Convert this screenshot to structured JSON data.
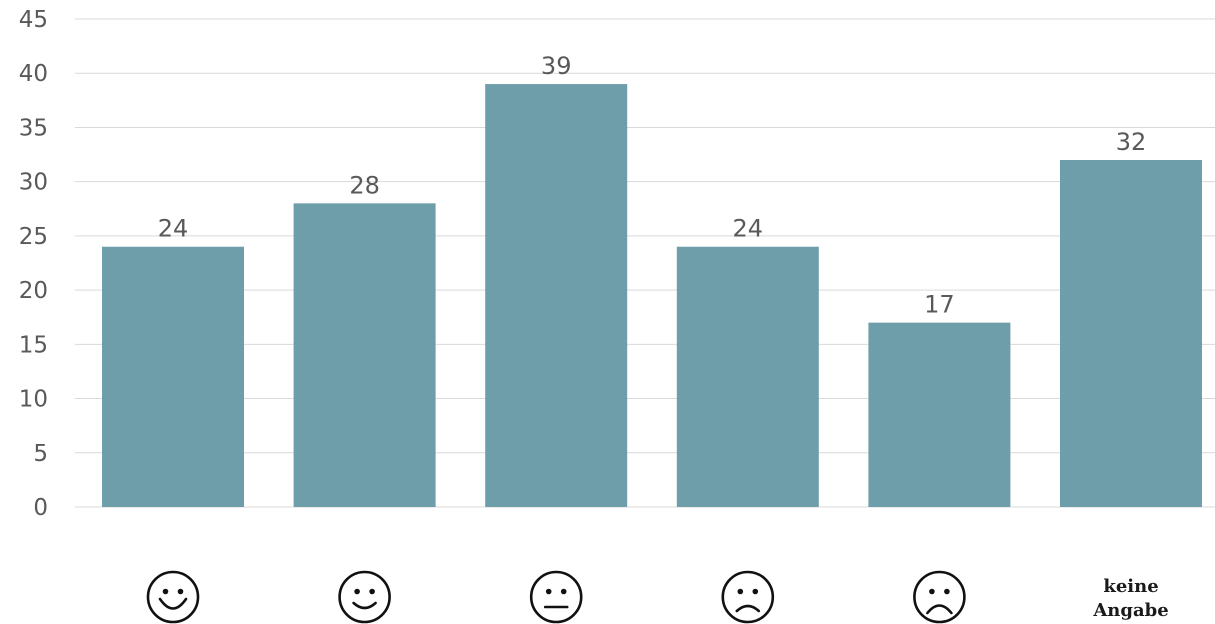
{
  "chart_data": {
    "type": "bar",
    "categories": [
      {
        "label": "",
        "icon": "very-happy-face-icon"
      },
      {
        "label": "",
        "icon": "happy-face-icon"
      },
      {
        "label": "",
        "icon": "neutral-face-icon"
      },
      {
        "label": "",
        "icon": "sad-face-icon"
      },
      {
        "label": "",
        "icon": "very-sad-face-icon"
      },
      {
        "label": "keine\nAngabe",
        "icon": null
      }
    ],
    "values": [
      24,
      28,
      39,
      24,
      17,
      32
    ],
    "data_labels": [
      "24",
      "28",
      "39",
      "24",
      "17",
      "32"
    ],
    "ylim": [
      0,
      45
    ],
    "yticks": [
      0,
      5,
      10,
      15,
      20,
      25,
      30,
      35,
      40,
      45
    ],
    "grid": true,
    "legend": "none",
    "bar_color": "#6e9eaa",
    "title": "",
    "xlabel": "",
    "ylabel": ""
  }
}
